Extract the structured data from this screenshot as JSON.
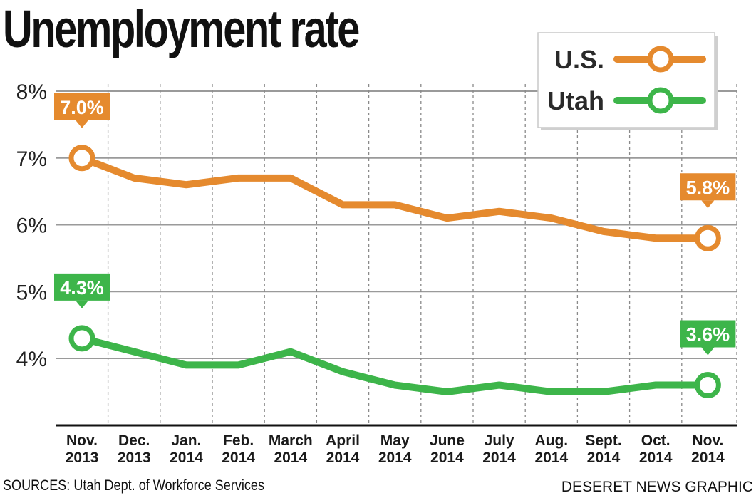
{
  "chart_data": {
    "type": "line",
    "title": "Unemployment rate",
    "categories": [
      [
        "Nov.",
        "2013"
      ],
      [
        "Dec.",
        "2013"
      ],
      [
        "Jan.",
        "2014"
      ],
      [
        "Feb.",
        "2014"
      ],
      [
        "March",
        "2014"
      ],
      [
        "April",
        "2014"
      ],
      [
        "May",
        "2014"
      ],
      [
        "June",
        "2014"
      ],
      [
        "July",
        "2014"
      ],
      [
        "Aug.",
        "2014"
      ],
      [
        "Sept.",
        "2014"
      ],
      [
        "Oct.",
        "2014"
      ],
      [
        "Nov.",
        "2014"
      ]
    ],
    "yticks": [
      "4%",
      "5%",
      "6%",
      "7%",
      "8%"
    ],
    "ylim": [
      3,
      8
    ],
    "grid": true,
    "legend_position": "top-right",
    "series": [
      {
        "name": "U.S.",
        "color": "#e58a2e",
        "values": [
          7.0,
          6.7,
          6.6,
          6.7,
          6.7,
          6.3,
          6.3,
          6.1,
          6.2,
          6.1,
          5.9,
          5.8,
          5.8
        ],
        "callouts": [
          {
            "index": 0,
            "label": "7.0%"
          },
          {
            "index": 12,
            "label": "5.8%"
          }
        ]
      },
      {
        "name": "Utah",
        "color": "#3db54a",
        "values": [
          4.3,
          4.1,
          3.9,
          3.9,
          4.1,
          3.8,
          3.6,
          3.5,
          3.6,
          3.5,
          3.5,
          3.6,
          3.6
        ],
        "callouts": [
          {
            "index": 0,
            "label": "4.3%"
          },
          {
            "index": 12,
            "label": "3.6%"
          }
        ]
      }
    ]
  },
  "footer": {
    "source": "SOURCES: Utah Dept. of Workforce Services",
    "credit": "DESERET NEWS GRAPHIC"
  }
}
